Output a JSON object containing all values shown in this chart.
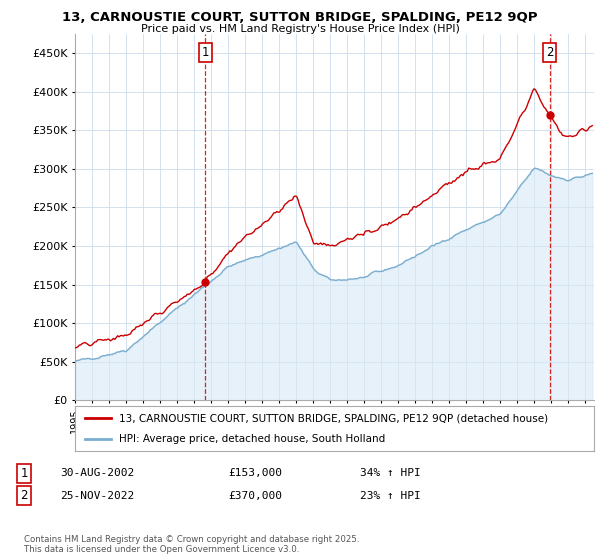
{
  "title": "13, CARNOUSTIE COURT, SUTTON BRIDGE, SPALDING, PE12 9QP",
  "subtitle": "Price paid vs. HM Land Registry's House Price Index (HPI)",
  "ylim": [
    0,
    475000
  ],
  "yticks": [
    0,
    50000,
    100000,
    150000,
    200000,
    250000,
    300000,
    350000,
    400000,
    450000
  ],
  "ytick_labels": [
    "£0",
    "£50K",
    "£100K",
    "£150K",
    "£200K",
    "£250K",
    "£300K",
    "£350K",
    "£400K",
    "£450K"
  ],
  "red_color": "#cc0000",
  "blue_color": "#7aadcf",
  "blue_fill_color": "#d6e8f5",
  "purchase1_date": 2002.66,
  "purchase1_price": 153000,
  "purchase2_date": 2022.9,
  "purchase2_price": 370000,
  "legend_label_red": "13, CARNOUSTIE COURT, SUTTON BRIDGE, SPALDING, PE12 9QP (detached house)",
  "legend_label_blue": "HPI: Average price, detached house, South Holland",
  "annotation1_label": "1",
  "annotation2_label": "2",
  "copyright": "Contains HM Land Registry data © Crown copyright and database right 2025.\nThis data is licensed under the Open Government Licence v3.0.",
  "xmin": 1995,
  "xmax": 2025.5,
  "background_color": "#ffffff",
  "grid_color": "#ccddee"
}
